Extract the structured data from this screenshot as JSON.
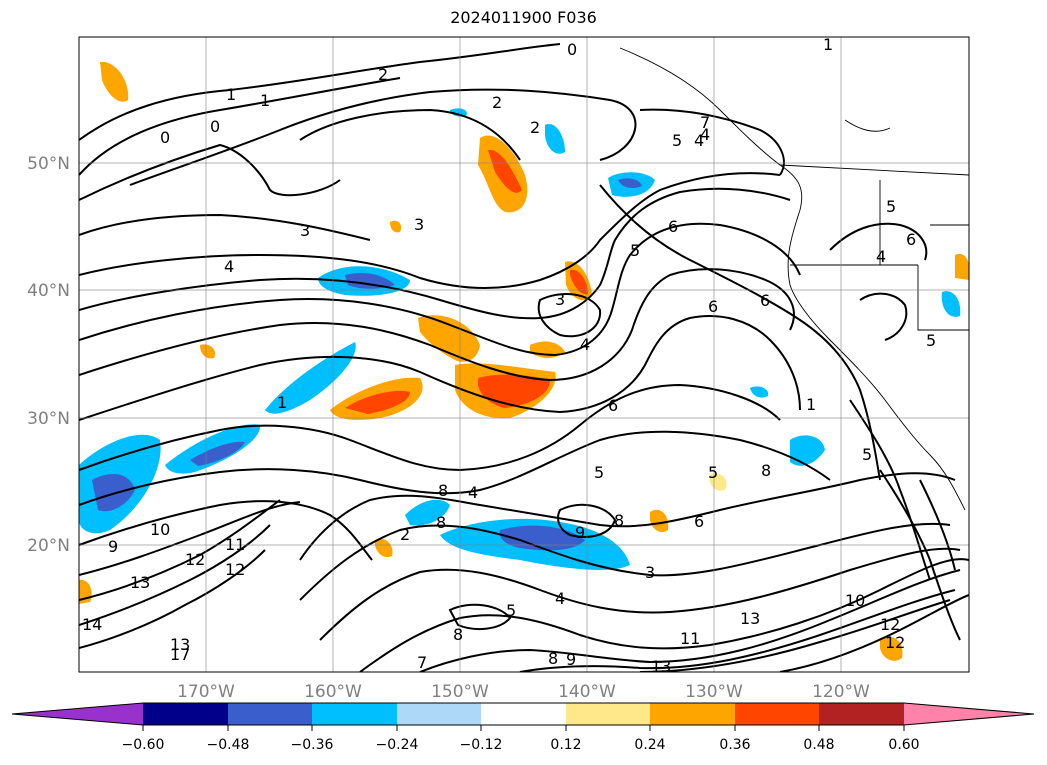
{
  "title": "2024011900 F036",
  "latitude_labels": [
    "50°N",
    "40°N",
    "30°N",
    "20°N"
  ],
  "longitude_labels": [
    "170°W",
    "160°W",
    "150°W",
    "140°W",
    "130°W",
    "120°W"
  ],
  "colorbar": {
    "tick_labels": [
      "−0.60",
      "−0.48",
      "−0.36",
      "−0.24",
      "−0.12",
      "0.12",
      "0.24",
      "0.36",
      "0.48",
      "0.60"
    ],
    "colors": [
      "#9932cc",
      "#00008b",
      "#3a5fcd",
      "#00bfff",
      "#add8f7",
      "#ffffff",
      "#ffe88a",
      "#ffa500",
      "#ff4500",
      "#b22222",
      "#ff82ab"
    ]
  },
  "contour_labels": [
    "0",
    "1",
    "1",
    "2",
    "2",
    "2",
    "0",
    "1",
    "0",
    "3",
    "3",
    "4",
    "3",
    "4",
    "4",
    "5",
    "6",
    "6",
    "6",
    "5",
    "4",
    "5",
    "4",
    "6",
    "5",
    "8",
    "9",
    "10",
    "12",
    "13",
    "11",
    "12",
    "13",
    "9",
    "8",
    "5",
    "6",
    "8",
    "9",
    "8",
    "3",
    "4",
    "5",
    "6",
    "7",
    "8",
    "10",
    "11",
    "12",
    "13",
    "14",
    "13",
    "1",
    "5",
    "8",
    "5",
    "1",
    "2",
    "12",
    "17",
    "7",
    "4"
  ]
}
